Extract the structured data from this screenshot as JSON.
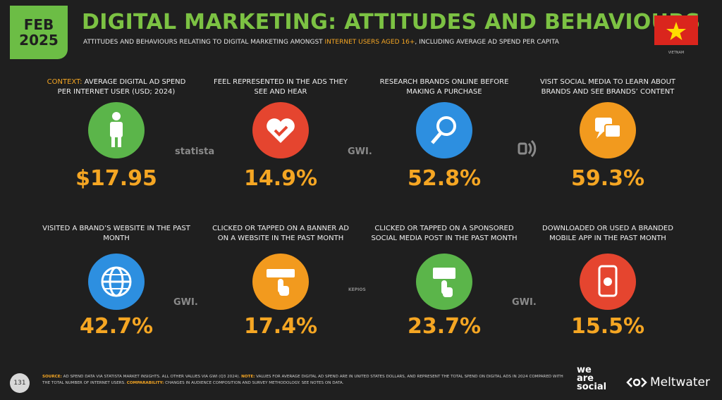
{
  "header": {
    "badge": [
      "FEB",
      "2025"
    ],
    "title": "DIGITAL MARKETING: ATTITUDES AND BEHAVIOURS",
    "subtitle": [
      "ATTITUDES AND BEHAVIOURS RELATING TO DIGITAL MARKETING AMONGST ",
      "INTERNET USERS AGED 16+",
      ", INCLUDING AVERAGE AD SPEND PER CAPITA"
    ],
    "country": "VIETNAM"
  },
  "cards": [
    {
      "prefix": "CONTEXT:",
      "label": "AVERAGE DIGITAL AD SPEND PER INTERNET USER (USD; 2024)",
      "value": "$17.95"
    },
    {
      "label": "FEEL REPRESENTED IN THE ADS THEY SEE AND HEAR",
      "value": "14.9%"
    },
    {
      "label": "RESEARCH BRANDS ONLINE BEFORE MAKING A PURCHASE",
      "value": "52.8%"
    },
    {
      "label": "VISIT SOCIAL MEDIA TO LEARN ABOUT BRANDS AND SEE BRANDS’ CONTENT",
      "value": "59.3%"
    },
    {
      "label": "VISITED A BRAND’S WEBSITE IN THE PAST MONTH",
      "value": "42.7%"
    },
    {
      "label": "CLICKED OR TAPPED ON A BANNER AD ON A WEBSITE IN THE PAST MONTH",
      "value": "17.4%"
    },
    {
      "label": "CLICKED OR TAPPED ON A SPONSORED SOCIAL MEDIA POST IN THE PAST MONTH",
      "value": "23.7%"
    },
    {
      "label": "DOWNLOADED OR USED A BRANDED MOBILE APP IN THE PAST MONTH",
      "value": "15.5%"
    }
  ],
  "source_logos": [
    "statista",
    "GWI.",
    "GWI.",
    "KEPIOS",
    "GWI."
  ],
  "footer": {
    "page": "131",
    "notes": [
      {
        "key": "SOURCE:",
        "text": " AD SPEND DATA VIA STATISTA MARKET INSIGHTS. ALL OTHER VALUES VIA GWI (Q3 2024). "
      },
      {
        "key": "NOTE:",
        "text": " VALUES FOR AVERAGE DIGITAL AD SPEND ARE IN UNITED STATES DOLLARS, AND REPRESENT THE TOTAL SPEND ON DIGITAL ADS IN 2024 COMPARED WITH THE TOTAL NUMBER OF INTERNET USERS. "
      },
      {
        "key": "COMPARABILITY:",
        "text": " CHANGES IN AUDIENCE COMPOSITION AND SURVEY METHODOLOGY. SEE NOTES ON DATA."
      }
    ],
    "brands": [
      "we",
      "are",
      "social",
      "Meltwater"
    ]
  }
}
